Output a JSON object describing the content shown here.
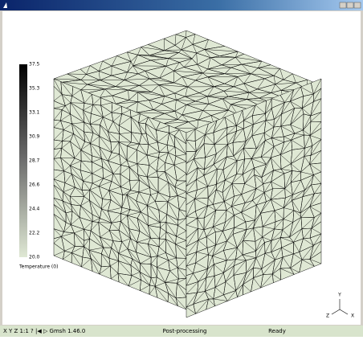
{
  "window": {
    "status_left": "X Y Z 1:1 ? |◀ ▷ Gmsh 1.46.0",
    "status_mid": "Post-processing",
    "status_right": "Ready"
  },
  "colorbar": {
    "labels": [
      "37.5",
      "35.3",
      "33.1",
      "30.9",
      "28.7",
      "26.6",
      "24.4",
      "22.2",
      "20.0"
    ],
    "title": "Temperature (0)"
  },
  "axes": {
    "x": "X",
    "y": "Y",
    "z": "Z"
  }
}
